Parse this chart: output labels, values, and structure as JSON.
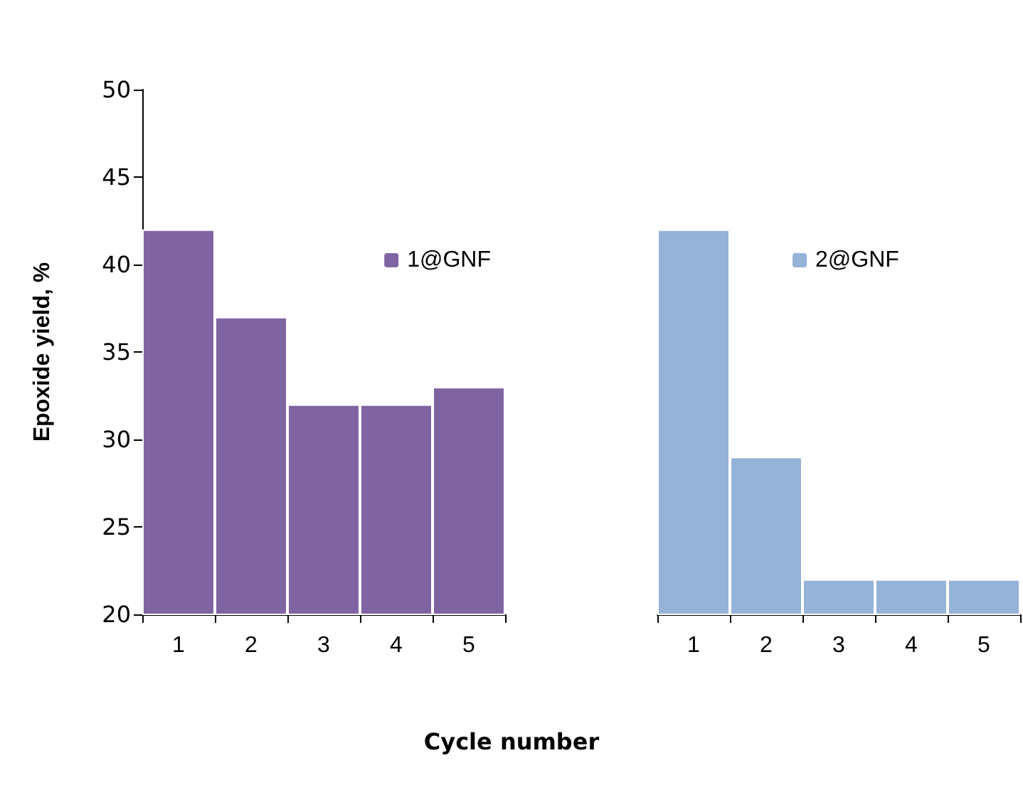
{
  "chart_data": [
    {
      "type": "bar",
      "ylabel": "Epoxide yield, %",
      "xlabel": "Cycle number",
      "categories": [
        "1",
        "2",
        "3",
        "4",
        "5"
      ],
      "series": [
        {
          "name": "1@GNF",
          "color": "#8064a2",
          "values": [
            42,
            37,
            32,
            32,
            33
          ]
        }
      ],
      "ylim": [
        20,
        50
      ],
      "yticks": [
        20,
        25,
        30,
        35,
        40,
        45,
        50
      ],
      "grid": false,
      "legend": "right"
    },
    {
      "type": "bar",
      "categories": [
        "1",
        "2",
        "3",
        "4",
        "5"
      ],
      "series": [
        {
          "name": "2@GNF",
          "color": "#95b3d7",
          "values": [
            42,
            29,
            22,
            22,
            22
          ]
        }
      ],
      "ylim": [
        20,
        50
      ],
      "yticks": [
        20,
        25,
        30,
        35,
        40,
        45,
        50
      ],
      "grid": false,
      "legend": "top",
      "tick_labels": "x"
    }
  ]
}
